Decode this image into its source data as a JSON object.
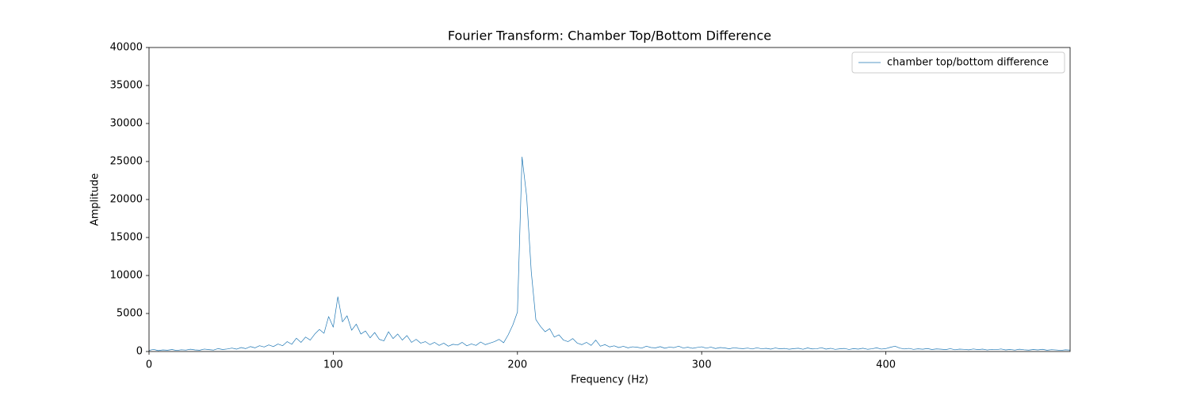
{
  "chart_data": {
    "type": "line",
    "title": "Fourier Transform: Chamber Top/Bottom Difference",
    "xlabel": "Frequency (Hz)",
    "ylabel": "Amplitude",
    "xlim": [
      0,
      500
    ],
    "ylim": [
      0,
      40000
    ],
    "xticks": [
      0,
      100,
      200,
      300,
      400
    ],
    "yticks": [
      0,
      5000,
      10000,
      15000,
      20000,
      25000,
      30000,
      35000,
      40000
    ],
    "legend": "upper right",
    "x": [
      0,
      2.5,
      5,
      7.5,
      10,
      12.5,
      15,
      17.5,
      20,
      22.5,
      25,
      27.5,
      30,
      32.5,
      35,
      37.5,
      40,
      42.5,
      45,
      47.5,
      50,
      52.5,
      55,
      57.5,
      60,
      62.5,
      65,
      67.5,
      70,
      72.5,
      75,
      77.5,
      80,
      82.5,
      85,
      87.5,
      90,
      92.5,
      95,
      97.5,
      100,
      102.5,
      105,
      107.5,
      110,
      112.5,
      115,
      117.5,
      120,
      122.5,
      125,
      127.5,
      130,
      132.5,
      135,
      137.5,
      140,
      142.5,
      145,
      147.5,
      150,
      152.5,
      155,
      157.5,
      160,
      162.5,
      165,
      167.5,
      170,
      172.5,
      175,
      177.5,
      180,
      182.5,
      185,
      187.5,
      190,
      192.5,
      195,
      197.5,
      200,
      202.5,
      205,
      207.5,
      210,
      212.5,
      215,
      217.5,
      220,
      222.5,
      225,
      227.5,
      230,
      232.5,
      235,
      237.5,
      240,
      242.5,
      245,
      247.5,
      250,
      252.5,
      255,
      257.5,
      260,
      262.5,
      265,
      267.5,
      270,
      272.5,
      275,
      277.5,
      280,
      282.5,
      285,
      287.5,
      290,
      292.5,
      295,
      297.5,
      300,
      302.5,
      305,
      307.5,
      310,
      312.5,
      315,
      317.5,
      320,
      322.5,
      325,
      327.5,
      330,
      332.5,
      335,
      337.5,
      340,
      342.5,
      345,
      347.5,
      350,
      352.5,
      355,
      357.5,
      360,
      362.5,
      365,
      367.5,
      370,
      372.5,
      375,
      377.5,
      380,
      382.5,
      385,
      387.5,
      390,
      392.5,
      395,
      397.5,
      400,
      402.5,
      405,
      407.5,
      410,
      412.5,
      415,
      417.5,
      420,
      422.5,
      425,
      427.5,
      430,
      432.5,
      435,
      437.5,
      440,
      442.5,
      445,
      447.5,
      450,
      452.5,
      455,
      457.5,
      460,
      462.5,
      465,
      467.5,
      470,
      472.5,
      475,
      477.5,
      480,
      482.5,
      485,
      487.5,
      490,
      492.5,
      495,
      497.5,
      500
    ],
    "series": [
      {
        "name": "chamber top/bottom difference",
        "color": "#1f77b4",
        "values": [
          150,
          280,
          120,
          210,
          170,
          260,
          140,
          230,
          190,
          300,
          210,
          170,
          320,
          250,
          190,
          380,
          260,
          330,
          450,
          310,
          520,
          380,
          650,
          480,
          760,
          590,
          870,
          640,
          980,
          760,
          1300,
          950,
          1750,
          1200,
          1900,
          1500,
          2300,
          2900,
          2400,
          4600,
          3200,
          7200,
          3900,
          4700,
          2800,
          3600,
          2300,
          2700,
          1800,
          2500,
          1600,
          1400,
          2600,
          1700,
          2300,
          1500,
          2100,
          1200,
          1600,
          1100,
          1300,
          900,
          1200,
          800,
          1100,
          700,
          950,
          850,
          1200,
          750,
          1000,
          800,
          1250,
          900,
          1100,
          1300,
          1600,
          1150,
          2200,
          3500,
          5200,
          25600,
          20400,
          10500,
          4200,
          3300,
          2600,
          3000,
          1900,
          2200,
          1500,
          1300,
          1700,
          1100,
          900,
          1200,
          800,
          1500,
          700,
          900,
          600,
          750,
          520,
          680,
          480,
          620,
          560,
          450,
          700,
          520,
          480,
          640,
          430,
          580,
          510,
          700,
          460,
          560,
          420,
          530,
          620,
          440,
          580,
          390,
          520,
          470,
          350,
          500,
          420,
          380,
          450,
          330,
          490,
          360,
          420,
          310,
          460,
          350,
          400,
          300,
          380,
          430,
          290,
          470,
          340,
          360,
          500,
          310,
          420,
          280,
          350,
          400,
          270,
          380,
          310,
          430,
          290,
          360,
          480,
          320,
          380,
          560,
          700,
          450,
          330,
          410,
          280,
          350,
          300,
          390,
          260,
          340,
          300,
          250,
          370,
          230,
          310,
          280,
          220,
          330,
          250,
          310,
          200,
          280,
          240,
          330,
          210,
          270,
          190,
          300,
          230,
          180,
          260,
          210,
          290,
          170,
          240,
          200,
          150,
          220,
          180
        ]
      }
    ]
  }
}
